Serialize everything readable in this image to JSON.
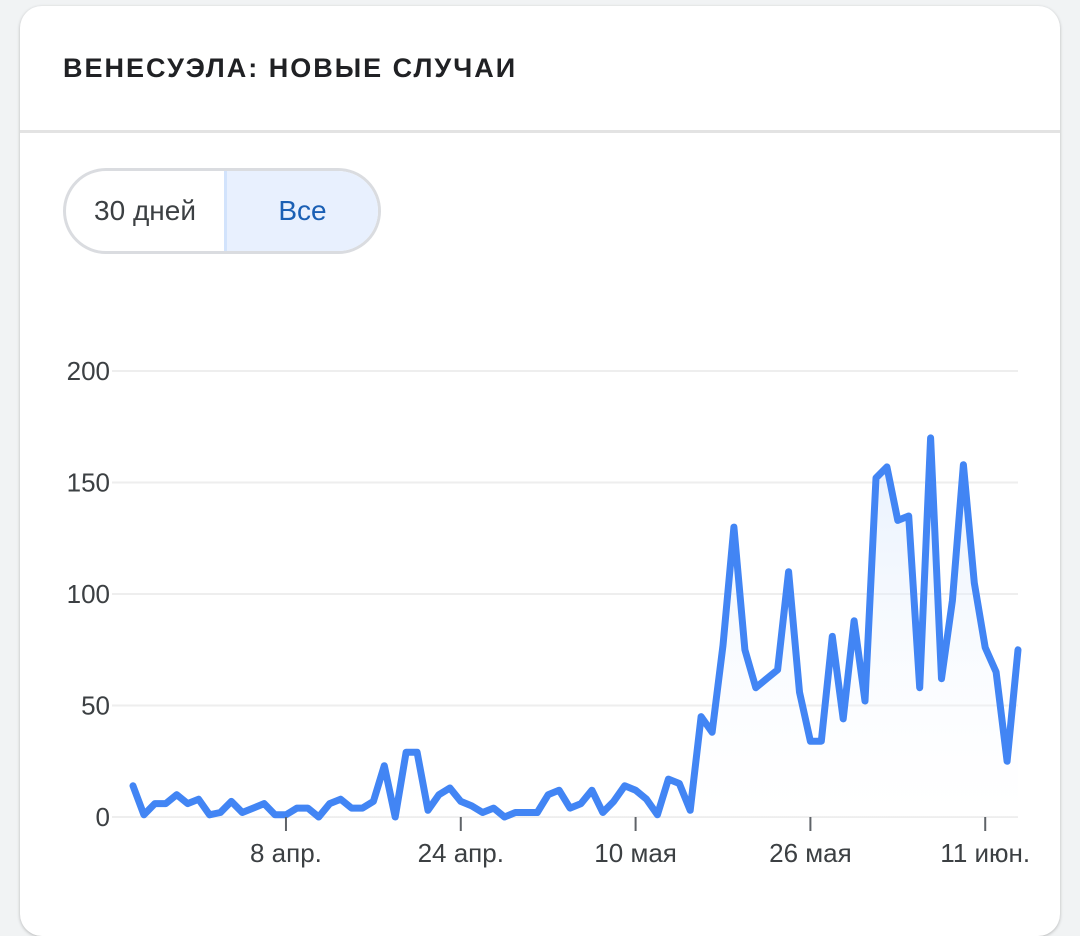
{
  "card": {
    "title": "ВЕНЕСУЭЛА: НОВЫЕ СЛУЧАИ"
  },
  "toggle": {
    "options": [
      "30 дней",
      "Все"
    ],
    "selected": "Все"
  },
  "colors": {
    "line": "#4285f4",
    "fill_top": "#d2e3fc",
    "grid": "#eeeeee",
    "active_option_bg": "#e8f0fe",
    "active_option_text": "#1a5fb4"
  },
  "chart_data": {
    "type": "area",
    "title": "",
    "xlabel": "",
    "ylabel": "",
    "ylim": [
      0,
      200
    ],
    "yticks": [
      0,
      50,
      100,
      150,
      200
    ],
    "yticklabels": [
      "0",
      "50",
      "100",
      "150",
      "200"
    ],
    "xticklabels": [
      "8 апр.",
      "24 апр.",
      "10 мая",
      "26 мая",
      "11 июн."
    ],
    "x_tick_index": [
      14,
      30,
      46,
      62,
      78
    ],
    "grid": true,
    "legend": "none",
    "series": [
      {
        "values": [
          14,
          1,
          6,
          6,
          10,
          6,
          8,
          1,
          2,
          7,
          2,
          4,
          6,
          1,
          1,
          4,
          4,
          0,
          6,
          8,
          4,
          4,
          7,
          23,
          0,
          29,
          29,
          3,
          10,
          13,
          7,
          5,
          2,
          4,
          0,
          2,
          2,
          2,
          10,
          12,
          4,
          6,
          12,
          2,
          7,
          14,
          12,
          8,
          1,
          17,
          15,
          3,
          45,
          38,
          77,
          130,
          75,
          58,
          62,
          66,
          110,
          56,
          34,
          34,
          81,
          44,
          88,
          52,
          152,
          157,
          133,
          135,
          58,
          170,
          62,
          97,
          158,
          105,
          76,
          65,
          25,
          75
        ]
      }
    ]
  }
}
